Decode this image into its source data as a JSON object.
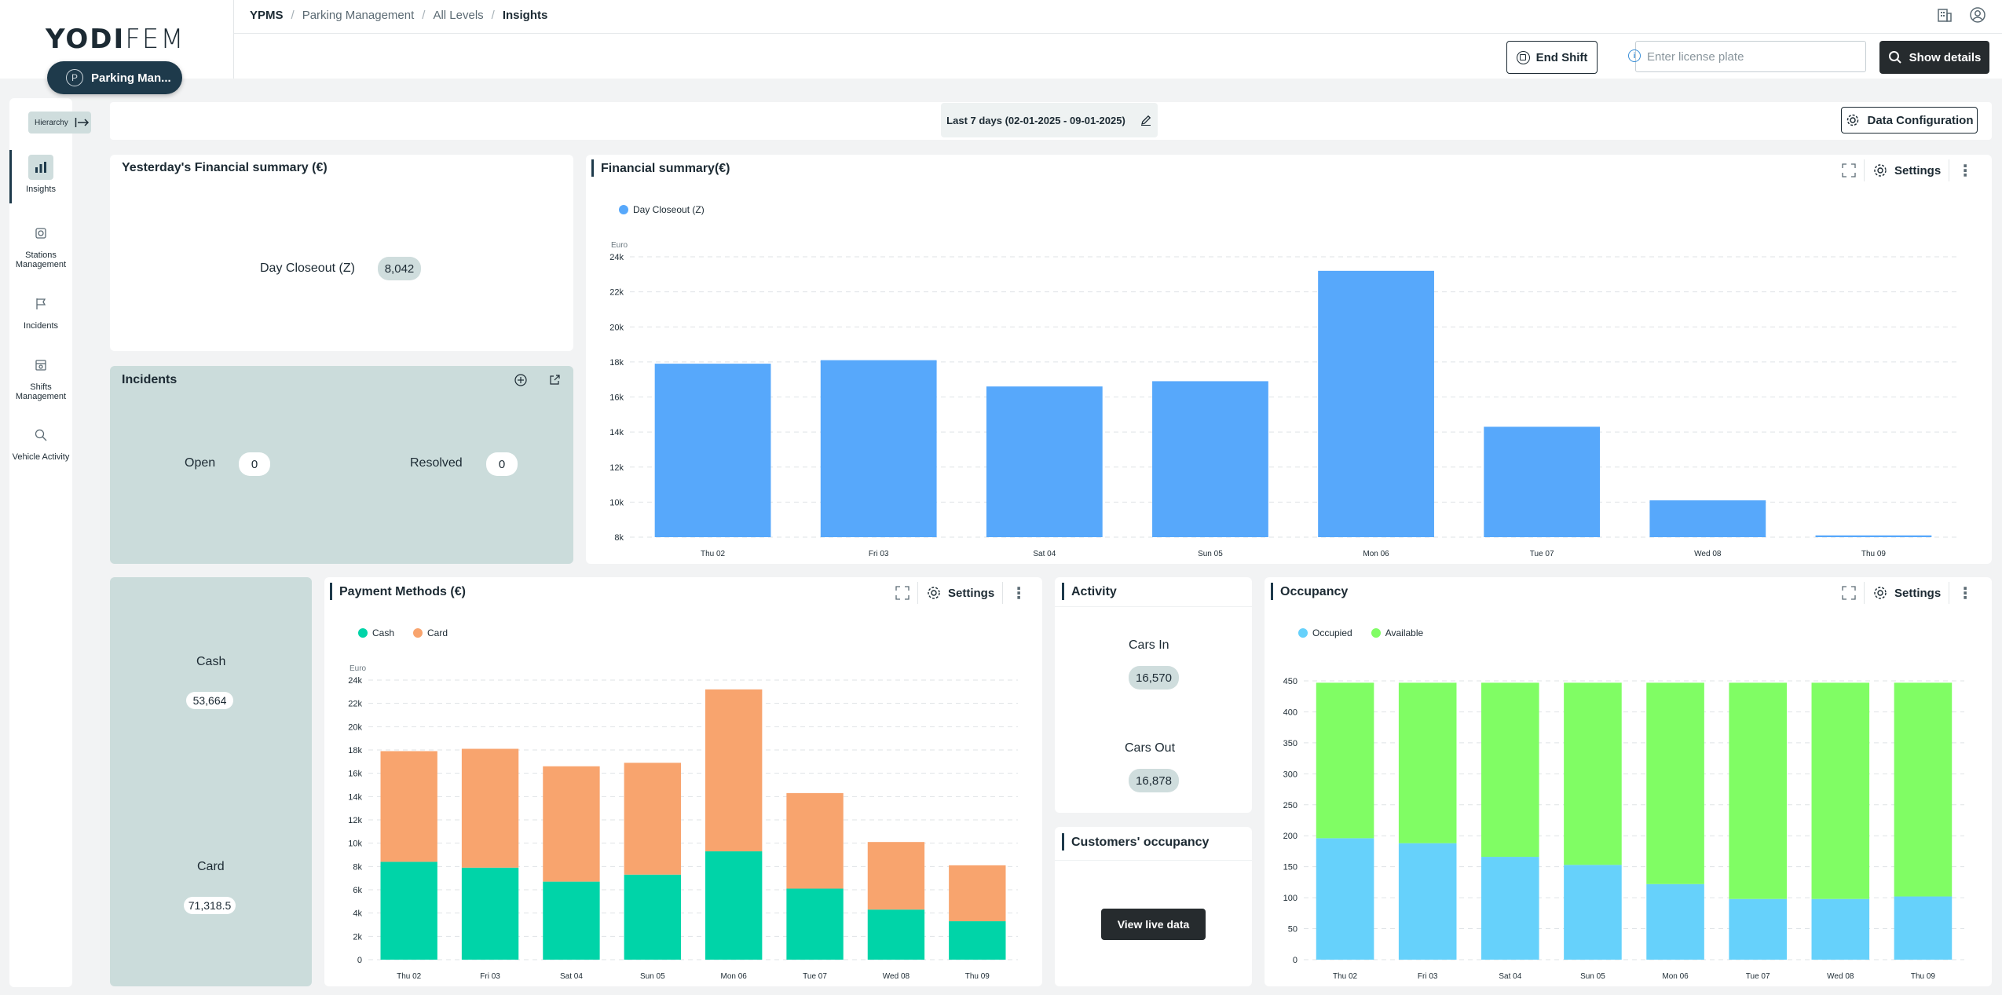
{
  "brand": {
    "logo_left": "YODI",
    "logo_right": "FEM",
    "app_pill": "Parking Man..."
  },
  "breadcrumb": [
    "YPMS",
    "Parking Management",
    "All Levels",
    "Insights"
  ],
  "header": {
    "end_shift": "End Shift",
    "license_placeholder": "Enter license plate",
    "show_details": "Show details"
  },
  "sidebar": {
    "hierarchy": "Hierarchy",
    "items": [
      {
        "label": "Insights",
        "icon": "chart-icon"
      },
      {
        "label": "Stations Management",
        "icon": "stations-icon"
      },
      {
        "label": "Incidents",
        "icon": "flag-icon"
      },
      {
        "label": "Shifts Management",
        "icon": "shifts-icon"
      },
      {
        "label": "Vehicle Activity",
        "icon": "car-search-icon"
      }
    ]
  },
  "date_range": "Last 7 days (02-01-2025 - 09-01-2025)",
  "data_config": "Data Configuration",
  "yesterday": {
    "title": "Yesterday's Financial summary (€)",
    "label": "Day Closeout (Z)",
    "value": "8,042"
  },
  "incidents": {
    "title": "Incidents",
    "open_label": "Open",
    "open_value": "0",
    "resolved_label": "Resolved",
    "resolved_value": "0"
  },
  "financial": {
    "title": "Financial summary(€)",
    "settings": "Settings"
  },
  "payment_totals": {
    "cash_label": "Cash",
    "cash_value": "53,664",
    "card_label": "Card",
    "card_value": "71,318.5"
  },
  "payment": {
    "title": "Payment Methods (€)",
    "settings": "Settings"
  },
  "activity": {
    "title": "Activity",
    "in_label": "Cars In",
    "in_value": "16,570",
    "out_label": "Cars Out",
    "out_value": "16,878"
  },
  "customers": {
    "title": "Customers' occupancy",
    "button": "View live data"
  },
  "occupancy": {
    "title": "Occupancy",
    "settings": "Settings"
  },
  "colors": {
    "blue": "#57a8fb",
    "cash": "#00d4a8",
    "card": "#f8a46e",
    "occupied": "#66d1fb",
    "available": "#80fd64"
  },
  "chart_data": [
    {
      "type": "bar",
      "title": "Financial summary(€)",
      "ylabel": "Euro",
      "categories": [
        "Thu 02",
        "Fri 03",
        "Sat 04",
        "Sun 05",
        "Mon 06",
        "Tue 07",
        "Wed 08",
        "Thu 09"
      ],
      "series": [
        {
          "name": "Day Closeout (Z)",
          "values": [
            17900,
            18100,
            16600,
            16900,
            23200,
            14300,
            10100,
            8100
          ]
        }
      ],
      "ylim": [
        8000,
        24000
      ],
      "yticks": [
        "8k",
        "10k",
        "12k",
        "14k",
        "16k",
        "18k",
        "20k",
        "22k",
        "24k"
      ],
      "legend": "top-left",
      "grid": true
    },
    {
      "type": "bar",
      "stacked": true,
      "title": "Payment Methods (€)",
      "ylabel": "Euro",
      "categories": [
        "Thu 02",
        "Fri 03",
        "Sat 04",
        "Sun 05",
        "Mon 06",
        "Tue 07",
        "Wed 08",
        "Thu 09"
      ],
      "series": [
        {
          "name": "Cash",
          "values": [
            8400,
            7900,
            6700,
            7300,
            9300,
            6100,
            4300,
            3300
          ]
        },
        {
          "name": "Card",
          "values": [
            9500,
            10200,
            9900,
            9600,
            13900,
            8200,
            5800,
            4800
          ]
        }
      ],
      "ylim": [
        0,
        24000
      ],
      "yticks": [
        "0",
        "2k",
        "4k",
        "6k",
        "8k",
        "10k",
        "12k",
        "14k",
        "16k",
        "18k",
        "20k",
        "22k",
        "24k"
      ],
      "legend": "top-left",
      "grid": true
    },
    {
      "type": "bar",
      "stacked": true,
      "title": "Occupancy",
      "categories": [
        "Thu 02",
        "Fri 03",
        "Sat 04",
        "Sun 05",
        "Mon 06",
        "Tue 07",
        "Wed 08",
        "Thu 09"
      ],
      "series": [
        {
          "name": "Occupied",
          "values": [
            196,
            188,
            166,
            153,
            122,
            98,
            98,
            102
          ]
        },
        {
          "name": "Available",
          "values": [
            251,
            259,
            281,
            294,
            325,
            349,
            349,
            345
          ]
        }
      ],
      "ylim": [
        0,
        450
      ],
      "yticks": [
        "0",
        "50",
        "100",
        "150",
        "200",
        "250",
        "300",
        "350",
        "400",
        "450"
      ],
      "legend": "top-left",
      "grid": true
    }
  ]
}
